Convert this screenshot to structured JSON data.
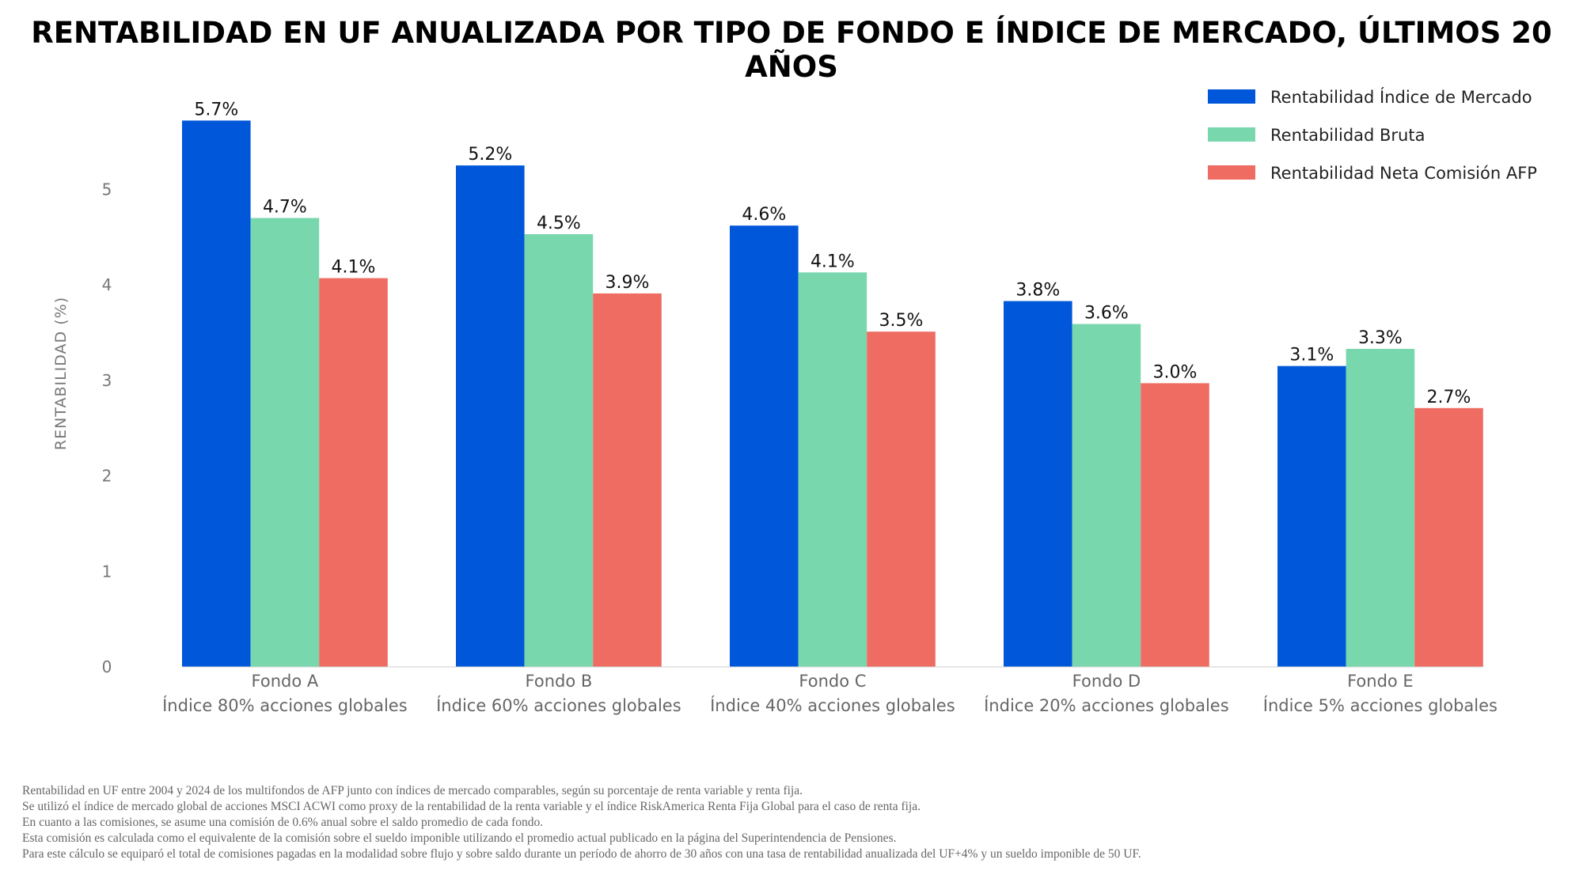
{
  "title": "RENTABILIDAD EN UF ANUALIZADA POR TIPO DE FONDO E ÍNDICE DE MERCADO, ÚLTIMOS 20 AÑOS",
  "chart_data": {
    "type": "bar",
    "title": "RENTABILIDAD EN UF ANUALIZADA POR TIPO DE FONDO E ÍNDICE DE MERCADO, ÚLTIMOS 20 AÑOS",
    "xlabel": "",
    "ylabel": "RENTABILIDAD (%)",
    "ylim": [
      0,
      5.8
    ],
    "yticks": [
      "0",
      "1",
      "2",
      "3",
      "4",
      "5"
    ],
    "grid": false,
    "legend_position": "top-right",
    "categories": [
      {
        "name": "Fondo A",
        "sub": "Índice 80% acciones globales"
      },
      {
        "name": "Fondo B",
        "sub": "Índice 60% acciones globales"
      },
      {
        "name": "Fondo C",
        "sub": "Índice 40% acciones globales"
      },
      {
        "name": "Fondo D",
        "sub": "Índice 20% acciones globales"
      },
      {
        "name": "Fondo E",
        "sub": "Índice 5% acciones globales"
      }
    ],
    "series": [
      {
        "name": "Rentabilidad Índice de Mercado",
        "color": "#0057D9",
        "values": [
          5.72,
          5.25,
          4.62,
          3.83,
          3.15
        ],
        "labels": [
          "5.7%",
          "5.2%",
          "4.6%",
          "3.8%",
          "3.1%"
        ]
      },
      {
        "name": "Rentabilidad Bruta",
        "color": "#79D7AE",
        "values": [
          4.7,
          4.53,
          4.13,
          3.59,
          3.33
        ],
        "labels": [
          "4.7%",
          "4.5%",
          "4.1%",
          "3.6%",
          "3.3%"
        ]
      },
      {
        "name": "Rentabilidad Neta Comisión AFP",
        "color": "#EE6C62",
        "values": [
          4.07,
          3.91,
          3.51,
          2.97,
          2.71
        ],
        "labels": [
          "4.1%",
          "3.9%",
          "3.5%",
          "3.0%",
          "2.7%"
        ]
      }
    ]
  },
  "footnotes": [
    "Rentabilidad en UF entre 2004 y 2024 de los multifondos de AFP junto con índices de mercado comparables, según su porcentaje de renta variable y renta fija.",
    "Se utilizó el índice de mercado global de acciones MSCI ACWI como proxy de la rentabilidad de la renta variable y el índice RiskAmerica Renta Fija Global para el caso de renta fija.",
    "En cuanto a las comisiones, se asume una comisión de 0.6% anual sobre el saldo promedio de cada fondo.",
    "Esta comisión es calculada como el equivalente de la comisión sobre el sueldo imponible utilizando el promedio actual publicado en la página del Superintendencia de Pensiones.",
    "Para este cálculo se equiparó el total de comisiones pagadas en la modalidad sobre flujo y sobre saldo durante un período de ahorro de 30 años con una tasa de rentabilidad anualizada del UF+4% y un sueldo imponible de 50 UF."
  ]
}
